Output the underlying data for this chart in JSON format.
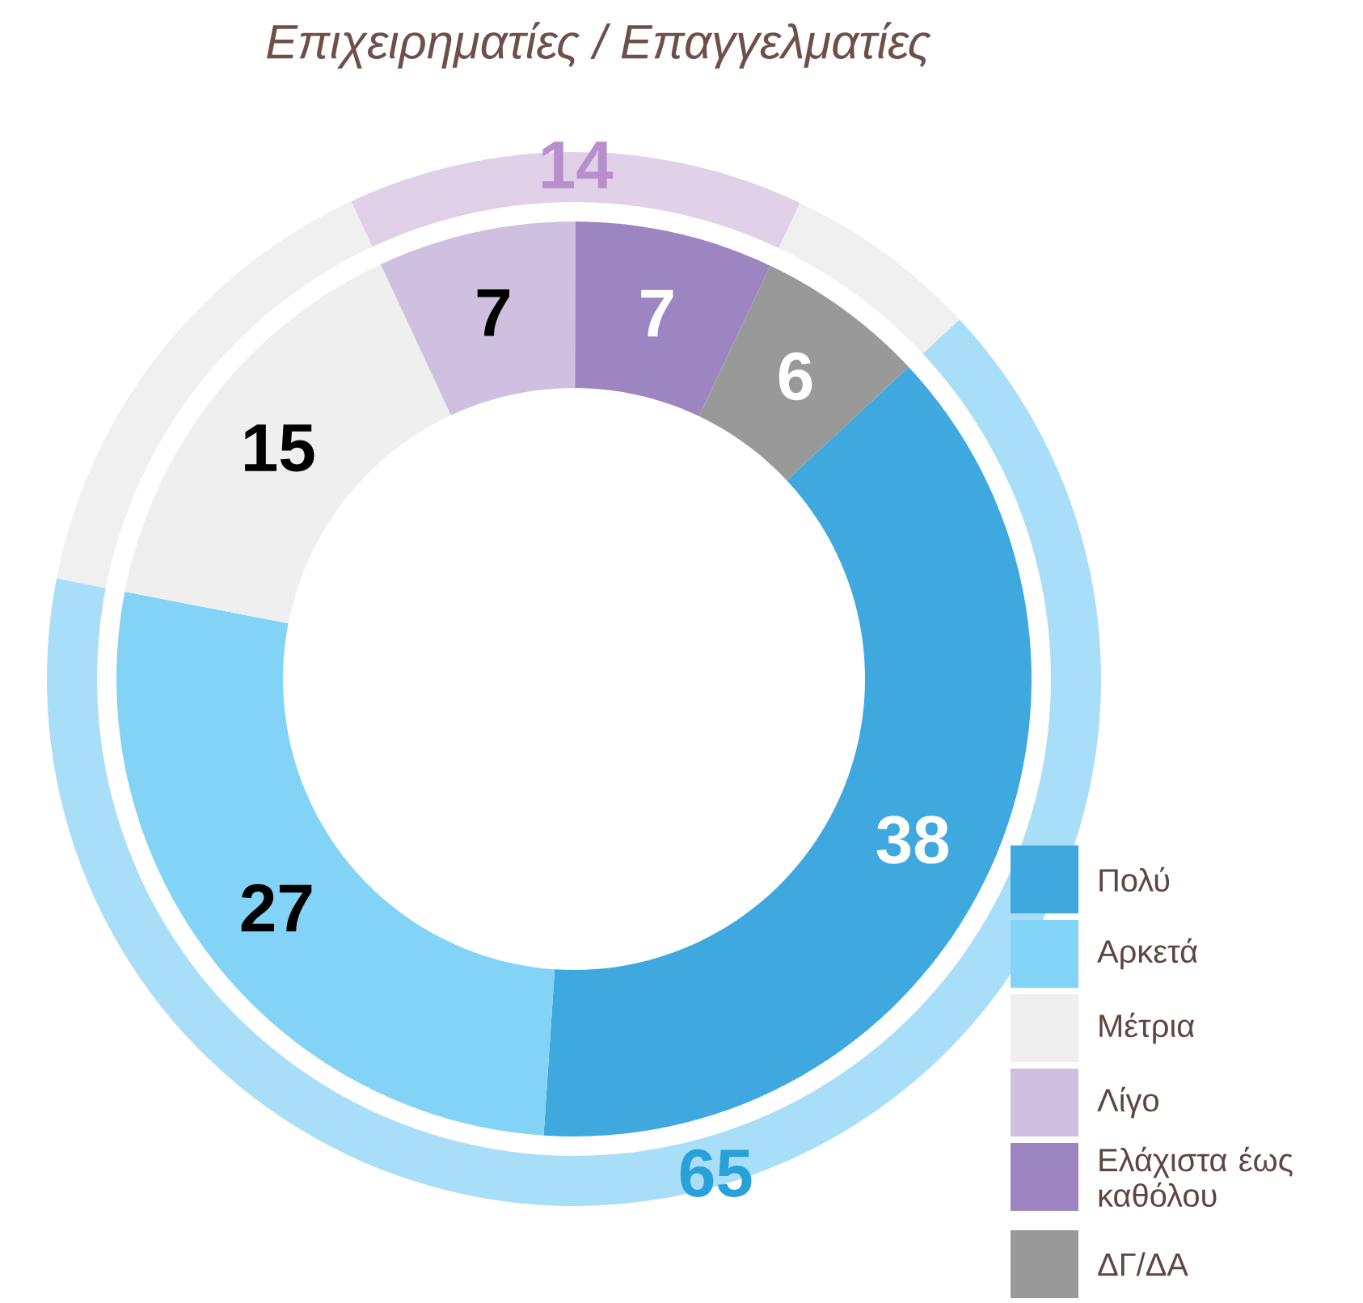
{
  "chart_data": {
    "type": "donut",
    "title": "Επιχειρηματίες / Επαγγελματίες",
    "categories": [
      "Πολύ",
      "Αρκετά",
      "Μέτρια",
      "Λίγο",
      "Ελάχιστα έως καθόλου",
      "ΔΓ/ΔΑ"
    ],
    "series": [
      {
        "values": [
          38,
          27,
          15,
          7,
          7,
          6
        ],
        "colors": [
          "#3ea8df",
          "#82d3f6",
          "#eeefee",
          "#d0c0df",
          "#9c85c0",
          "#999999"
        ]
      },
      {
        "values": [
          65,
          null,
          15,
          14,
          null,
          6
        ],
        "colors": [
          "#a8def7",
          "#a8def7",
          "#eff0ef",
          "#e0d0e8",
          "#e0d0e8",
          "#eff0ef"
        ],
        "value_labels": [
          "65",
          null,
          null,
          "14",
          null,
          null
        ]
      }
    ],
    "data_labels": true,
    "legend": "bottom right"
  }
}
